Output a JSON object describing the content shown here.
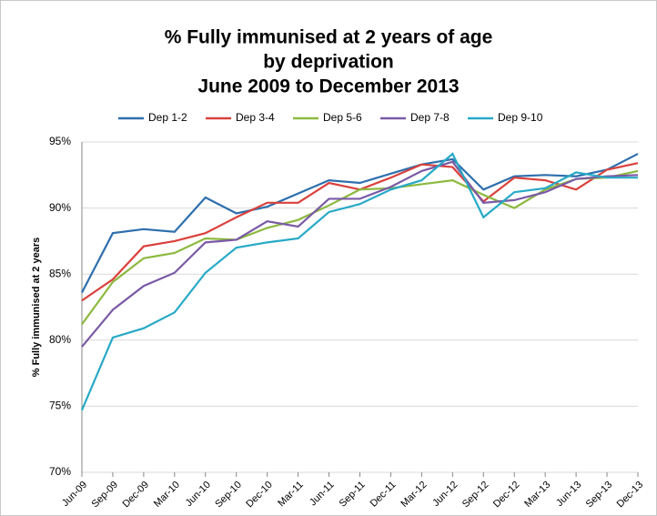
{
  "chart_data": {
    "type": "line",
    "title_lines": [
      "% Fully immunised at 2 years of age",
      "by deprivation",
      "June 2009 to December 2013"
    ],
    "y_label": "% Fully immunised at 2 years",
    "categories": [
      "Jun-09",
      "Sep-09",
      "Dec-09",
      "Mar-10",
      "Jun-10",
      "Sep-10",
      "Dec-10",
      "Mar-11",
      "Jun-11",
      "Sep-11",
      "Dec-11",
      "Mar-12",
      "Jun-12",
      "Sep-12",
      "Dec-12",
      "Mar-13",
      "Jun-13",
      "Sep-13",
      "Dec-13"
    ],
    "series": [
      {
        "name": "Dep 1-2",
        "color": "#2e6fad",
        "values": [
          83.6,
          88.1,
          88.4,
          88.2,
          90.8,
          89.6,
          90.1,
          91.1,
          92.1,
          91.9,
          92.6,
          93.3,
          93.7,
          91.4,
          92.4,
          92.5,
          92.4,
          92.9,
          94.1
        ]
      },
      {
        "name": "Dep 3-4",
        "color": "#d9413c",
        "values": [
          83.0,
          84.6,
          87.1,
          87.5,
          88.1,
          89.3,
          90.4,
          90.4,
          91.9,
          91.4,
          92.3,
          93.3,
          93.1,
          90.5,
          92.3,
          92.1,
          91.4,
          92.9,
          93.4
        ]
      },
      {
        "name": "Dep 5-6",
        "color": "#8cb93f",
        "values": [
          81.2,
          84.4,
          86.2,
          86.6,
          87.7,
          87.6,
          88.5,
          89.1,
          90.2,
          91.4,
          91.5,
          91.8,
          92.1,
          91.0,
          90.0,
          91.4,
          92.2,
          92.3,
          92.8
        ]
      },
      {
        "name": "Dep 7-8",
        "color": "#7a5aa6",
        "values": [
          79.5,
          82.3,
          84.1,
          85.1,
          87.4,
          87.6,
          89.0,
          88.6,
          90.7,
          90.7,
          91.6,
          92.8,
          93.5,
          90.4,
          90.6,
          91.2,
          92.2,
          92.4,
          92.5
        ]
      },
      {
        "name": "Dep 9-10",
        "color": "#27a9c6",
        "values": [
          74.7,
          80.2,
          80.9,
          82.1,
          85.1,
          87.0,
          87.4,
          87.7,
          89.7,
          90.3,
          91.4,
          92.1,
          94.1,
          89.3,
          91.2,
          91.5,
          92.7,
          92.3,
          92.3
        ]
      }
    ],
    "ylim": [
      70,
      95
    ],
    "yticks": [
      {
        "value": 70,
        "label": "70%"
      },
      {
        "value": 75,
        "label": "75%"
      },
      {
        "value": 80,
        "label": "80%"
      },
      {
        "value": 85,
        "label": "85%"
      },
      {
        "value": 90,
        "label": "90%"
      },
      {
        "value": 95,
        "label": "95%"
      }
    ],
    "grid": true
  }
}
